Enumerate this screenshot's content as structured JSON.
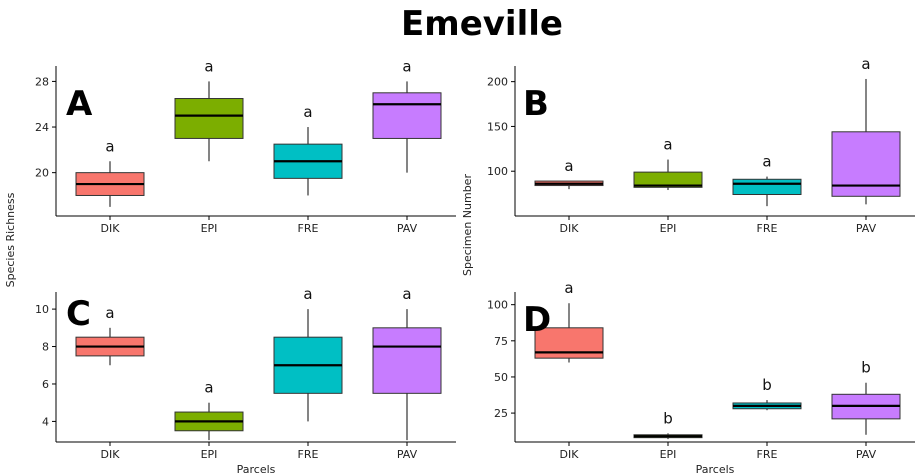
{
  "title": "Emeville",
  "colors": {
    "DIK": "#F8766D",
    "EPI": "#7CAE00",
    "FRE": "#00BFC4",
    "PAV": "#C77CFF"
  },
  "x_axis_title": "Parcels",
  "chart_data": [
    {
      "panel": "A",
      "type": "box",
      "ylabel": "Species Richness",
      "ylim": [
        16.2,
        29.0
      ],
      "yticks": [
        20,
        24,
        28
      ],
      "categories": [
        "DIK",
        "EPI",
        "FRE",
        "PAV"
      ],
      "boxes": [
        {
          "category": "DIK",
          "min": 17,
          "q1": 18,
          "median": 19,
          "q3": 20,
          "max": 21,
          "letter": "a"
        },
        {
          "category": "EPI",
          "min": 21,
          "q1": 23,
          "median": 25,
          "q3": 26.5,
          "max": 28,
          "letter": "a"
        },
        {
          "category": "FRE",
          "min": 18,
          "q1": 19.5,
          "median": 21,
          "q3": 22.5,
          "max": 24,
          "letter": "a"
        },
        {
          "category": "PAV",
          "min": 20,
          "q1": 23,
          "median": 26,
          "q3": 27,
          "max": 28,
          "letter": "a"
        }
      ]
    },
    {
      "panel": "B",
      "type": "box",
      "ylabel": "Specimen Number",
      "ylim": [
        50,
        213
      ],
      "yticks": [
        100,
        150,
        200
      ],
      "categories": [
        "DIK",
        "EPI",
        "FRE",
        "PAV"
      ],
      "boxes": [
        {
          "category": "DIK",
          "min": 80,
          "q1": 84,
          "median": 86,
          "q3": 89,
          "max": 89,
          "letter": "a"
        },
        {
          "category": "EPI",
          "min": 79,
          "q1": 82,
          "median": 84,
          "q3": 99,
          "max": 113,
          "letter": "a"
        },
        {
          "category": "FRE",
          "min": 61,
          "q1": 74,
          "median": 86,
          "q3": 91,
          "max": 94,
          "letter": "a"
        },
        {
          "category": "PAV",
          "min": 63,
          "q1": 72,
          "median": 84,
          "q3": 144,
          "max": 203,
          "letter": "a"
        }
      ]
    },
    {
      "panel": "C",
      "type": "box",
      "ylabel": "",
      "ylim": [
        2.9,
        10.7
      ],
      "yticks": [
        4,
        6,
        8,
        10
      ],
      "categories": [
        "DIK",
        "EPI",
        "FRE",
        "PAV"
      ],
      "boxes": [
        {
          "category": "DIK",
          "min": 7,
          "q1": 7.5,
          "median": 8,
          "q3": 8.5,
          "max": 9,
          "letter": "a"
        },
        {
          "category": "EPI",
          "min": 3,
          "q1": 3.5,
          "median": 4,
          "q3": 4.5,
          "max": 5,
          "letter": "a"
        },
        {
          "category": "FRE",
          "min": 4,
          "q1": 5.5,
          "median": 7,
          "q3": 8.5,
          "max": 10,
          "letter": "a"
        },
        {
          "category": "PAV",
          "min": 3,
          "q1": 5.5,
          "median": 8,
          "q3": 9,
          "max": 10,
          "letter": "a"
        }
      ]
    },
    {
      "panel": "D",
      "type": "box",
      "ylabel": "",
      "ylim": [
        5,
        106
      ],
      "yticks": [
        25,
        50,
        75,
        100
      ],
      "categories": [
        "DIK",
        "EPI",
        "FRE",
        "PAV"
      ],
      "boxes": [
        {
          "category": "DIK",
          "min": 60,
          "q1": 63,
          "median": 67,
          "q3": 84,
          "max": 101,
          "letter": "a"
        },
        {
          "category": "EPI",
          "min": 7,
          "q1": 8,
          "median": 9,
          "q3": 10,
          "max": 11,
          "letter": "b"
        },
        {
          "category": "FRE",
          "min": 27,
          "q1": 28,
          "median": 30,
          "q3": 32,
          "max": 34,
          "letter": "b"
        },
        {
          "category": "PAV",
          "min": 10,
          "q1": 21,
          "median": 30,
          "q3": 38,
          "max": 46,
          "letter": "b"
        }
      ]
    }
  ]
}
